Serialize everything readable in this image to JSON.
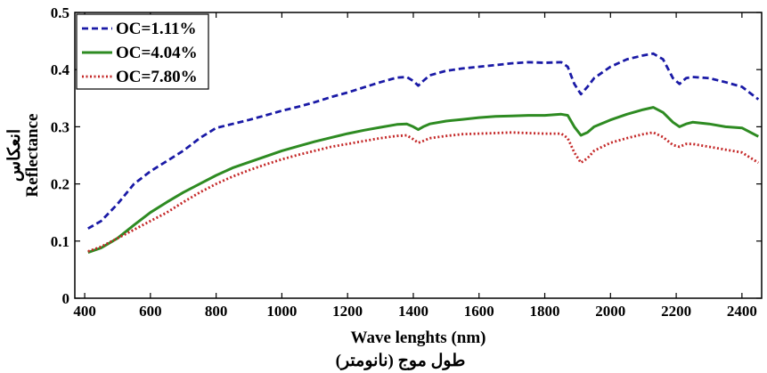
{
  "chart_data": {
    "type": "line",
    "xlabel": "Wave lenghts (nm)",
    "xlabel_secondary": "طول موج (نانومتر)",
    "ylabel": "Reflectance",
    "ylabel_secondary": "انعكاس",
    "xlim": [
      370,
      2460
    ],
    "ylim": [
      0,
      0.5
    ],
    "xticks": [
      400,
      600,
      800,
      1000,
      1200,
      1400,
      1600,
      1800,
      2000,
      2200,
      2400
    ],
    "yticks": [
      0,
      0.1,
      0.2,
      0.3,
      0.4,
      0.5
    ],
    "ytick_labels": [
      "0",
      "0.1",
      "0.2",
      "0.3",
      "0.4",
      "0.5"
    ],
    "grid": false,
    "legend_position": "top-left",
    "series": [
      {
        "name": "OC=1.11%",
        "color": "#1a1aa6",
        "style": "dashed",
        "x": [
          410,
          450,
          500,
          550,
          600,
          650,
          700,
          750,
          800,
          850,
          900,
          950,
          1000,
          1050,
          1100,
          1150,
          1200,
          1250,
          1300,
          1350,
          1380,
          1400,
          1415,
          1430,
          1450,
          1500,
          1550,
          1600,
          1650,
          1700,
          1750,
          1800,
          1850,
          1870,
          1890,
          1910,
          1930,
          1950,
          2000,
          2050,
          2100,
          2130,
          2160,
          2190,
          2210,
          2230,
          2250,
          2300,
          2350,
          2400,
          2450
        ],
        "y": [
          0.122,
          0.135,
          0.165,
          0.2,
          0.222,
          0.24,
          0.258,
          0.28,
          0.298,
          0.305,
          0.312,
          0.32,
          0.328,
          0.335,
          0.343,
          0.352,
          0.36,
          0.369,
          0.378,
          0.386,
          0.387,
          0.38,
          0.372,
          0.38,
          0.39,
          0.398,
          0.402,
          0.405,
          0.408,
          0.411,
          0.413,
          0.412,
          0.413,
          0.405,
          0.375,
          0.357,
          0.37,
          0.385,
          0.405,
          0.418,
          0.425,
          0.428,
          0.418,
          0.385,
          0.375,
          0.385,
          0.387,
          0.385,
          0.378,
          0.37,
          0.348
        ]
      },
      {
        "name": "OC=4.04%",
        "color": "#2e8b22",
        "style": "solid",
        "x": [
          410,
          450,
          500,
          550,
          600,
          650,
          700,
          750,
          800,
          850,
          900,
          950,
          1000,
          1050,
          1100,
          1150,
          1200,
          1250,
          1300,
          1350,
          1380,
          1400,
          1415,
          1430,
          1450,
          1500,
          1550,
          1600,
          1650,
          1700,
          1750,
          1800,
          1850,
          1870,
          1890,
          1910,
          1930,
          1950,
          2000,
          2050,
          2100,
          2130,
          2160,
          2190,
          2210,
          2230,
          2250,
          2300,
          2350,
          2400,
          2450
        ],
        "y": [
          0.08,
          0.088,
          0.105,
          0.128,
          0.15,
          0.168,
          0.185,
          0.2,
          0.215,
          0.228,
          0.238,
          0.248,
          0.258,
          0.266,
          0.274,
          0.281,
          0.288,
          0.294,
          0.299,
          0.304,
          0.305,
          0.3,
          0.295,
          0.3,
          0.305,
          0.31,
          0.313,
          0.316,
          0.318,
          0.319,
          0.32,
          0.32,
          0.322,
          0.32,
          0.3,
          0.285,
          0.29,
          0.3,
          0.312,
          0.322,
          0.33,
          0.334,
          0.325,
          0.308,
          0.3,
          0.305,
          0.308,
          0.305,
          0.3,
          0.298,
          0.283
        ]
      },
      {
        "name": "OC=7.80%",
        "color": "#c42828",
        "style": "dotted",
        "x": [
          410,
          450,
          500,
          550,
          600,
          650,
          700,
          750,
          800,
          850,
          900,
          950,
          1000,
          1050,
          1100,
          1150,
          1200,
          1250,
          1300,
          1350,
          1380,
          1400,
          1415,
          1430,
          1450,
          1500,
          1550,
          1600,
          1650,
          1700,
          1750,
          1800,
          1850,
          1870,
          1890,
          1910,
          1930,
          1950,
          2000,
          2050,
          2100,
          2130,
          2160,
          2190,
          2210,
          2230,
          2250,
          2300,
          2350,
          2400,
          2450
        ],
        "y": [
          0.082,
          0.09,
          0.105,
          0.12,
          0.135,
          0.15,
          0.168,
          0.185,
          0.2,
          0.213,
          0.224,
          0.234,
          0.243,
          0.251,
          0.258,
          0.265,
          0.27,
          0.275,
          0.28,
          0.284,
          0.285,
          0.278,
          0.272,
          0.275,
          0.28,
          0.284,
          0.287,
          0.288,
          0.289,
          0.29,
          0.289,
          0.288,
          0.288,
          0.28,
          0.255,
          0.237,
          0.245,
          0.258,
          0.272,
          0.28,
          0.287,
          0.29,
          0.282,
          0.268,
          0.265,
          0.27,
          0.27,
          0.265,
          0.26,
          0.255,
          0.237
        ]
      }
    ]
  }
}
